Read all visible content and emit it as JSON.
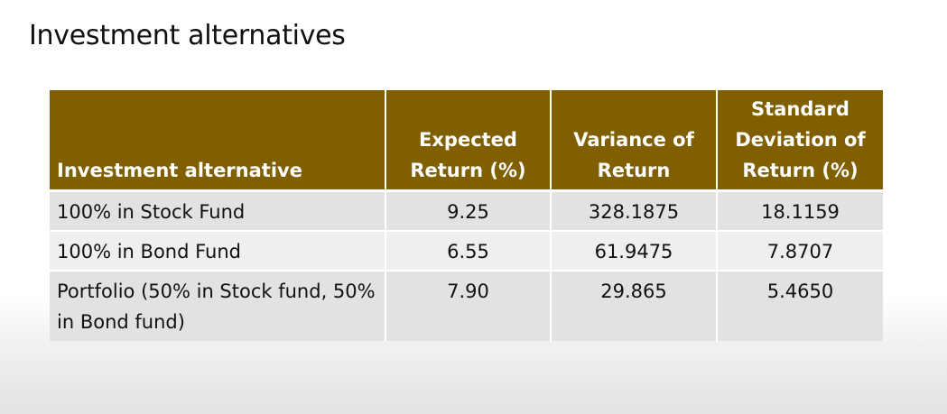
{
  "title": "Investment alternatives",
  "table": {
    "headers": [
      "Investment alternative",
      "Expected Return (%)",
      "Variance of Return",
      "Standard Deviation of Return (%)"
    ],
    "rows": [
      [
        "100% in Stock Fund",
        "9.25",
        "328.1875",
        "18.1159"
      ],
      [
        "100% in Bond Fund",
        "6.55",
        "61.9475",
        "7.8707"
      ],
      [
        "Portfolio (50% in Stock fund, 50% in Bond fund)",
        "7.90",
        "29.865",
        "5.4650"
      ]
    ]
  },
  "colors": {
    "header_bg": "#7f5f00",
    "header_text": "#ffffff",
    "row_odd_bg": "#e2e1e3",
    "row_even_bg": "#efeef0"
  }
}
